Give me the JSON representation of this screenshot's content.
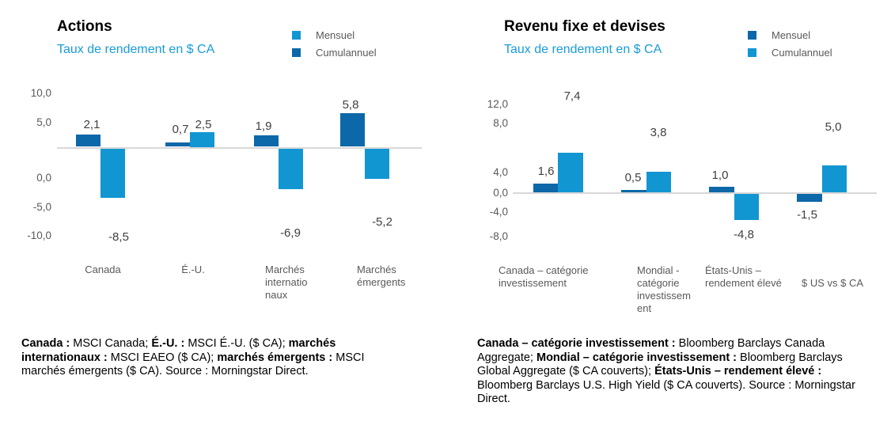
{
  "colors": {
    "dark": "#0c68a8",
    "light": "#1296d2",
    "subtitle": "#199cd8",
    "axis_line": "#d8d8d8",
    "tick_text": "#595959",
    "category_text": "#595959",
    "value_text": "#404040"
  },
  "chart_data": [
    {
      "type": "bar",
      "title": "Actions",
      "subtitle": "Taux de rendement en $ CA",
      "ylabel": "",
      "xlabel": "",
      "ylim": [
        -10,
        10
      ],
      "grid": false,
      "legend_position": "top-right",
      "categories": [
        "Canada",
        "É.-U.",
        "Marchés internationaux",
        "Marchés émergents"
      ],
      "categories_lines": [
        [
          "Canada"
        ],
        [
          "É.-U."
        ],
        [
          "Marchés",
          "internatio",
          "naux"
        ],
        [
          "Marchés",
          "émergents"
        ]
      ],
      "legend": [
        {
          "label": "Mensuel",
          "shade": "light"
        },
        {
          "label": "Cumulannuel",
          "shade": "dark"
        }
      ],
      "series": [
        {
          "name": "Cumulannuel",
          "shade": "dark",
          "values": [
            2.1,
            0.7,
            1.9,
            5.8
          ]
        },
        {
          "name": "Mensuel",
          "shade": "light",
          "values": [
            -8.5,
            2.5,
            -6.9,
            -5.2
          ]
        }
      ],
      "yticks": [
        "10,0",
        "5,0",
        "0,0",
        "-5,0",
        "-10,0"
      ],
      "footnote": [
        {
          "text": "Canada :",
          "bold": true
        },
        {
          "text": " MSCI Canada; ",
          "bold": false
        },
        {
          "text": "É.-U. :",
          "bold": true
        },
        {
          "text": " MSCI É.-U. ($ CA); ",
          "bold": false
        },
        {
          "text": "marchés internationaux :",
          "bold": true
        },
        {
          "text": " MSCI EAEO ($ CA); ",
          "bold": false
        },
        {
          "text": "marchés émergents :",
          "bold": true
        },
        {
          "text": " MSCI marchés émergents ($ CA). Source : Morningstar Direct.",
          "bold": false
        }
      ]
    },
    {
      "type": "bar",
      "title": "Revenu fixe et devises",
      "subtitle": "Taux de rendement en $ CA",
      "ylabel": "",
      "xlabel": "",
      "ylim": [
        -8,
        12
      ],
      "grid": false,
      "legend_position": "top-right",
      "categories": [
        "Canada – catégorie investissement",
        "Mondial - catégorie investissement",
        "États-Unis – rendement élevé",
        "$ US vs $ CA"
      ],
      "categories_lines": [
        [
          "Canada – catégorie",
          "investissement"
        ],
        [
          "Mondial -",
          "catégorie",
          "investissem",
          "ent"
        ],
        [
          "États-Unis –",
          "rendement élevé"
        ],
        [
          "$ US vs $ CA"
        ]
      ],
      "legend": [
        {
          "label": "Mensuel",
          "shade": "dark"
        },
        {
          "label": "Cumulannuel",
          "shade": "light"
        }
      ],
      "series": [
        {
          "name": "Mensuel",
          "shade": "dark",
          "values": [
            1.6,
            0.5,
            1.0,
            -1.5
          ]
        },
        {
          "name": "Cumulannuel",
          "shade": "light",
          "values": [
            7.4,
            3.8,
            -4.8,
            5.0
          ]
        }
      ],
      "yticks": [
        "12,0",
        "8,0",
        "4,0",
        "0,0",
        "-4,0",
        "-8,0"
      ],
      "footnote": [
        {
          "text": "Canada – catégorie investissement :",
          "bold": true
        },
        {
          "text": " Bloomberg Barclays Canada Aggregate; ",
          "bold": false
        },
        {
          "text": "Mondial – catégorie investissement :",
          "bold": true
        },
        {
          "text": " Bloomberg Barclays Global Aggregate ($ CA couverts); ",
          "bold": false
        },
        {
          "text": "États-Unis – rendement élevé :",
          "bold": true
        },
        {
          "text": " Bloomberg Barclays U.S. High Yield ($ CA couverts). Source : Morningstar Direct.",
          "bold": false
        }
      ]
    }
  ]
}
